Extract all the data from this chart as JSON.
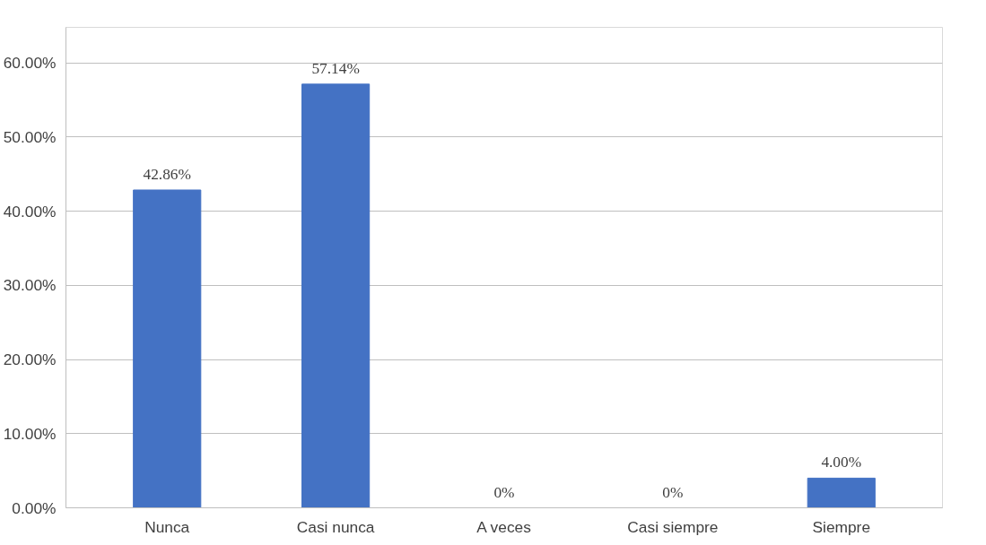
{
  "chart_data": {
    "type": "bar",
    "categories": [
      "Nunca",
      "Casi nunca",
      "A veces",
      "Casi siempre",
      "Siempre"
    ],
    "values": [
      42.86,
      57.14,
      0,
      0,
      4.0
    ],
    "value_labels": [
      "42.86%",
      "57.14%",
      "0%",
      "0%",
      "4.00%"
    ],
    "color": "#4472c4",
    "ylim": [
      0,
      60
    ],
    "yticks": [
      {
        "value": 0,
        "label": "0.00%"
      },
      {
        "value": 10,
        "label": "10.00%"
      },
      {
        "value": 20,
        "label": "20.00%"
      },
      {
        "value": 30,
        "label": "30.00%"
      },
      {
        "value": 40,
        "label": "40.00%"
      },
      {
        "value": 50,
        "label": "50.00%"
      },
      {
        "value": 60,
        "label": "60.00%"
      }
    ],
    "grid": "y"
  }
}
